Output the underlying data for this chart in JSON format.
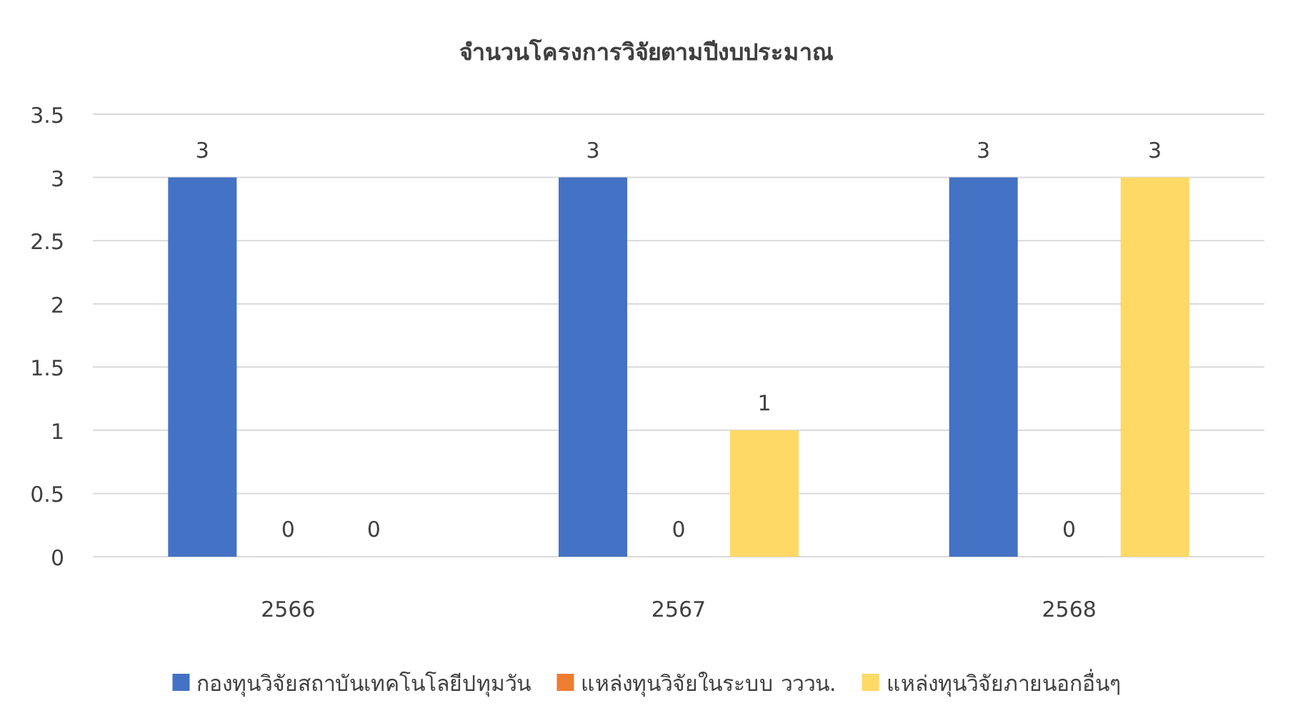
{
  "chart_data": {
    "type": "bar",
    "title": "จำนวนโครงการวิจัยตามปีงบประมาณ",
    "categories": [
      "2566",
      "2567",
      "2568"
    ],
    "series": [
      {
        "name": "กองทุนวิจัยสถาบันเทคโนโลยีปทุมวัน",
        "color": "#4472c4",
        "values": [
          3,
          3,
          3
        ]
      },
      {
        "name": "แหล่งทุนวิจัยในระบบ วววน.",
        "color": "#ed7d31",
        "values": [
          0,
          0,
          0
        ]
      },
      {
        "name": "แหล่งทุนวิจัยภายนอกอื่นๆ",
        "color": "#ffd966",
        "values": [
          0,
          1,
          3
        ]
      }
    ],
    "ylim": [
      0,
      3.5
    ],
    "yticks": [
      0,
      0.5,
      1,
      1.5,
      2,
      2.5,
      3,
      3.5
    ],
    "grid": "y",
    "legend": "bottom",
    "data_labels": true
  }
}
